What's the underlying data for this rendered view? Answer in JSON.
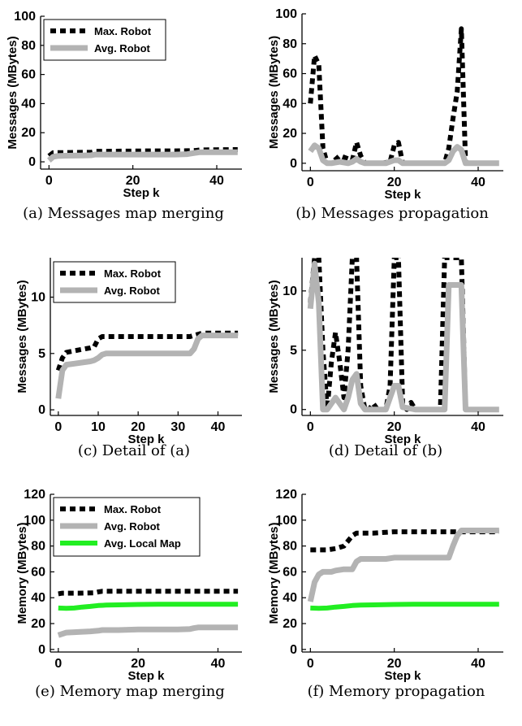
{
  "colors": {
    "max": "#000000",
    "avg": "#b3b3b3",
    "local": "#22ee22"
  },
  "chart_data": [
    {
      "id": "a",
      "type": "line",
      "caption": "(a) Messages map merging",
      "xlabel": "Step k",
      "ylabel": "Messages (MBytes)",
      "xlim": [
        -2,
        46
      ],
      "ylim": [
        -5,
        100
      ],
      "xticks": [
        0,
        20,
        40
      ],
      "yticks": [
        0,
        20,
        40,
        60,
        80,
        100
      ],
      "legend": "top-left",
      "series": [
        {
          "name": "Max. Robot",
          "style": "max",
          "x": [
            0,
            1,
            2,
            5,
            8,
            10,
            11,
            15,
            20,
            25,
            30,
            33,
            35,
            36,
            40,
            45
          ],
          "y": [
            4,
            6.2,
            6.3,
            6.4,
            6.5,
            6.5,
            7.2,
            7.3,
            7.4,
            7.5,
            7.5,
            7.6,
            7.8,
            8.2,
            8.3,
            8.4
          ]
        },
        {
          "name": "Avg. Robot",
          "style": "avg",
          "x": [
            0,
            1,
            2,
            4,
            8,
            10,
            11,
            15,
            20,
            25,
            30,
            33,
            34,
            35,
            36,
            40,
            45
          ],
          "y": [
            1,
            3.5,
            4,
            4.2,
            4.3,
            4.5,
            5,
            5,
            5,
            5,
            5,
            5.3,
            5.8,
            6.2,
            6.6,
            6.6,
            6.6
          ]
        }
      ]
    },
    {
      "id": "b",
      "type": "line",
      "caption": "(b) Messages propagation",
      "xlabel": "Step k",
      "ylabel": "Messages (MBytes)",
      "xlim": [
        -2,
        46
      ],
      "ylim": [
        -5,
        100
      ],
      "xticks": [
        0,
        20,
        40
      ],
      "yticks": [
        0,
        20,
        40,
        60,
        80,
        100
      ],
      "legend": "none",
      "series": [
        {
          "name": "",
          "style": "max",
          "x": [
            0,
            1,
            2,
            3,
            4,
            5,
            7,
            8,
            10,
            11,
            12,
            13,
            15,
            17,
            19,
            20,
            21,
            22,
            24,
            26,
            28,
            30,
            32,
            33,
            34,
            35,
            36,
            37,
            40,
            45
          ],
          "y": [
            40,
            72,
            66,
            10,
            0,
            0,
            5,
            4,
            2,
            14,
            5,
            0,
            0,
            0,
            1,
            12,
            14,
            0,
            0,
            0,
            0,
            0,
            0,
            10,
            30,
            48,
            90,
            0,
            0,
            0
          ]
        },
        {
          "name": "",
          "style": "avg",
          "x": [
            0,
            1,
            2,
            3,
            4,
            5,
            7,
            9,
            10,
            11,
            12,
            13,
            15,
            18,
            20,
            21,
            22,
            25,
            30,
            32,
            33,
            34,
            35,
            36,
            37,
            40,
            45
          ],
          "y": [
            8,
            12,
            10,
            2,
            0,
            0,
            1,
            0,
            1,
            3,
            1,
            0,
            0,
            0,
            2,
            2,
            0,
            0,
            0,
            0,
            2,
            8,
            11,
            9,
            0,
            0,
            0
          ]
        }
      ]
    },
    {
      "id": "c",
      "type": "line",
      "caption": "(c) Detail of (a)",
      "xlabel": "Step k",
      "ylabel": "Messages (MBytes)",
      "xlim": [
        -2,
        46
      ],
      "ylim": [
        -0.5,
        13.5
      ],
      "xticks": [
        0,
        10,
        20,
        30,
        40
      ],
      "yticks": [
        0,
        5,
        10
      ],
      "legend": "top-left",
      "series": [
        {
          "name": "Max. Robot",
          "style": "max",
          "x": [
            0,
            1,
            2,
            5,
            8,
            9,
            10,
            11,
            15,
            20,
            25,
            30,
            33,
            34,
            35,
            36,
            40,
            45
          ],
          "y": [
            3.5,
            4.6,
            5.1,
            5.3,
            5.5,
            5.6,
            6.3,
            6.5,
            6.5,
            6.5,
            6.5,
            6.5,
            6.5,
            6.6,
            6.7,
            6.8,
            6.8,
            6.8
          ]
        },
        {
          "name": "Avg. Robot",
          "style": "avg",
          "x": [
            0,
            1,
            2,
            4,
            8,
            9,
            10,
            11,
            12,
            15,
            20,
            25,
            30,
            33,
            34,
            35,
            36,
            40,
            45
          ],
          "y": [
            1,
            3.5,
            4,
            4.1,
            4.3,
            4.4,
            4.6,
            4.9,
            5,
            5,
            5,
            5,
            5,
            5,
            5.4,
            6.3,
            6.6,
            6.6,
            6.6
          ]
        }
      ]
    },
    {
      "id": "d",
      "type": "line",
      "caption": "(d) Detail of (b)",
      "xlabel": "Step k",
      "ylabel": "Messages (MBytes)",
      "xlim": [
        -2,
        46
      ],
      "ylim": [
        -0.5,
        12.8
      ],
      "xticks": [
        0,
        20,
        40
      ],
      "yticks": [
        0,
        5,
        10
      ],
      "legend": "none",
      "series": [
        {
          "name": "",
          "style": "max",
          "x": [
            0,
            1,
            2,
            3,
            4,
            5,
            6,
            7,
            8,
            9,
            10,
            11,
            12,
            13,
            14,
            15,
            16,
            17,
            18,
            19,
            20,
            21,
            22,
            23,
            24,
            25,
            26,
            27,
            30,
            31,
            32,
            33,
            34,
            35,
            36,
            37,
            40,
            45
          ],
          "y": [
            9,
            12.8,
            12.8,
            5,
            0,
            4,
            6.5,
            4,
            1,
            5,
            12.8,
            12.8,
            2,
            0,
            0,
            0.5,
            0,
            0,
            0,
            2,
            12.8,
            12.8,
            0.5,
            0,
            0.6,
            0,
            0,
            0,
            0,
            0,
            12.8,
            12.8,
            12.8,
            12.8,
            12.8,
            0,
            0,
            0
          ]
        },
        {
          "name": "",
          "style": "avg",
          "x": [
            0,
            1,
            2,
            3,
            4,
            5,
            6,
            7,
            8,
            9,
            10,
            11,
            12,
            13,
            15,
            18,
            19,
            20,
            21,
            22,
            25,
            30,
            32,
            33,
            34,
            35,
            36,
            37,
            40,
            45
          ],
          "y": [
            8.5,
            12.3,
            9,
            0,
            0,
            0.5,
            1,
            0.5,
            0,
            1,
            2.5,
            3,
            0.5,
            0,
            0,
            0,
            1,
            2,
            2,
            0.2,
            0,
            0,
            0,
            10.5,
            10.5,
            10.5,
            10.5,
            0,
            0,
            0
          ]
        }
      ]
    },
    {
      "id": "e",
      "type": "line",
      "caption": "(e) Memory map merging",
      "xlabel": "Step k",
      "ylabel": "Memory (MBytes)",
      "xlim": [
        -2,
        46
      ],
      "ylim": [
        -2,
        120
      ],
      "xticks": [
        0,
        20,
        40
      ],
      "yticks": [
        0,
        20,
        40,
        60,
        80,
        100,
        120
      ],
      "legend": "top-left",
      "series": [
        {
          "name": "Max. Robot",
          "style": "max",
          "x": [
            0,
            1,
            5,
            9,
            10,
            11,
            15,
            20,
            25,
            30,
            33,
            35,
            40,
            45
          ],
          "y": [
            43,
            43.5,
            43.5,
            43.8,
            44.5,
            45,
            45,
            45,
            45,
            45,
            45,
            45,
            45,
            45
          ]
        },
        {
          "name": "Avg. Robot",
          "style": "avg",
          "x": [
            0,
            1,
            2,
            5,
            8,
            10,
            11,
            15,
            20,
            25,
            30,
            33,
            34,
            35,
            36,
            40,
            45
          ],
          "y": [
            11,
            12,
            13,
            13.5,
            14,
            14.5,
            15,
            15,
            15.5,
            15.5,
            15.5,
            15.8,
            16.5,
            17,
            17,
            17,
            17
          ]
        },
        {
          "name": "Avg. Local Map",
          "style": "local",
          "x": [
            0,
            2,
            4,
            6,
            8,
            10,
            12,
            15,
            20,
            25,
            30,
            35,
            40,
            45
          ],
          "y": [
            32,
            31.8,
            32,
            32.8,
            33.3,
            34,
            34.3,
            34.5,
            34.8,
            35,
            35,
            35,
            35,
            35
          ]
        }
      ]
    },
    {
      "id": "f",
      "type": "line",
      "caption": "(f) Memory propagation",
      "xlabel": "Step k",
      "ylabel": "Memory (MBytes)",
      "xlim": [
        -2,
        46
      ],
      "ylim": [
        -2,
        120
      ],
      "xticks": [
        0,
        20,
        40
      ],
      "yticks": [
        0,
        20,
        40,
        60,
        80,
        100,
        120
      ],
      "legend": "none",
      "series": [
        {
          "name": "",
          "style": "max",
          "x": [
            0,
            2,
            4,
            6,
            8,
            10,
            11,
            15,
            20,
            25,
            30,
            33,
            34,
            35,
            36,
            40,
            45
          ],
          "y": [
            77,
            77,
            77,
            78,
            80,
            88,
            90,
            90,
            91,
            91,
            91,
            91,
            91,
            91,
            91,
            91,
            91
          ]
        },
        {
          "name": "",
          "style": "avg",
          "x": [
            0,
            1,
            2,
            3,
            5,
            6,
            8,
            10,
            11,
            12,
            15,
            18,
            20,
            25,
            30,
            33,
            34,
            35,
            36,
            40,
            45
          ],
          "y": [
            37,
            52,
            58,
            60,
            60,
            61,
            62,
            62,
            68,
            70,
            70,
            70,
            71,
            71,
            71,
            71,
            80,
            88,
            92,
            92,
            92
          ]
        },
        {
          "name": "",
          "style": "local",
          "x": [
            0,
            2,
            4,
            6,
            8,
            10,
            12,
            15,
            20,
            25,
            30,
            35,
            40,
            45
          ],
          "y": [
            32,
            31.8,
            32,
            32.8,
            33.3,
            34,
            34.3,
            34.5,
            34.8,
            35,
            35,
            35,
            35,
            35
          ]
        }
      ]
    }
  ]
}
